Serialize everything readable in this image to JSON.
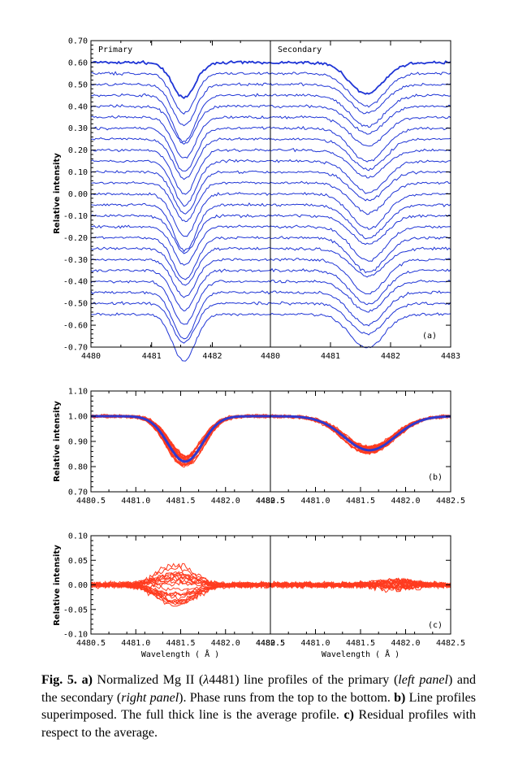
{
  "caption": {
    "label": "Fig. 5.",
    "a": "a)",
    "a_text1": " Normalized Mg II (",
    "lambda": "λ",
    "a_text2": "4481) line profiles of the primary (",
    "left_panel": "left panel",
    "a_text3": ") and the secondary (",
    "right_panel": "right panel",
    "a_text4": "). Phase runs from the top to the bottom. ",
    "b": "b)",
    "b_text": " Line profiles superimposed. The full thick line is the average profile. ",
    "c": "c)",
    "c_text": " Residual profiles with respect to the average."
  },
  "colors": {
    "profiles": "#1f35d6",
    "overlay": "#ff3b1f",
    "average": "#2f3ad0"
  },
  "chart_data": [
    {
      "type": "line",
      "panel_letter": "(a)",
      "ylabel": "Relative intensity",
      "ylim": [
        -0.7,
        0.7
      ],
      "yticks": [
        "0.70",
        "0.60",
        "0.50",
        "0.40",
        "0.30",
        "0.20",
        "0.10",
        "0.00",
        "-0.10",
        "-0.20",
        "-0.30",
        "-0.40",
        "-0.50",
        "-0.60",
        "-0.70"
      ],
      "subpanels": [
        {
          "name": "Primary",
          "xlim": [
            4480,
            4483
          ],
          "xticks": [
            "4480",
            "4481",
            "4482"
          ],
          "line_center": 4481.55,
          "line_depth": 0.19,
          "line_width": 0.27
        },
        {
          "name": "Secondary",
          "xlim": [
            4480,
            4483
          ],
          "xticks": [
            "4480",
            "4481",
            "4482",
            "4483"
          ],
          "line_center": 4481.6,
          "line_depth": 0.14,
          "line_width": 0.4
        }
      ],
      "continuum_levels": [
        0.6,
        0.55,
        0.5,
        0.45,
        0.4,
        0.35,
        0.3,
        0.25,
        0.2,
        0.15,
        0.1,
        0.05,
        0.0,
        -0.05,
        -0.1,
        -0.15,
        -0.2,
        -0.25,
        -0.3,
        -0.35,
        -0.4,
        -0.45,
        -0.5,
        -0.55
      ]
    },
    {
      "type": "line",
      "panel_letter": "(b)",
      "ylabel": "Relative intensity",
      "ylim": [
        0.7,
        1.1
      ],
      "yticks": [
        "1.10",
        "1.00",
        "0.90",
        "0.80",
        "0.70"
      ],
      "xlim": [
        4480.5,
        4482.5
      ],
      "xticks": [
        "4480.5",
        "4481.0",
        "4481.5",
        "4482.0",
        "4482.5"
      ],
      "subpanels": [
        {
          "name": "left",
          "average_min": 0.82,
          "center": 4481.55,
          "width": 0.27
        },
        {
          "name": "right",
          "average_min": 0.865,
          "center": 4481.6,
          "width": 0.4
        }
      ]
    },
    {
      "type": "line",
      "panel_letter": "(c)",
      "ylabel": "Relative intensity",
      "xlabel": "Wavelength ( Å )",
      "ylim": [
        -0.1,
        0.1
      ],
      "yticks": [
        "0.10",
        "0.05",
        "0.00",
        "-0.05",
        "-0.10"
      ],
      "xlim": [
        4480.5,
        4482.5
      ],
      "xticks": [
        "4480.5",
        "4481.0",
        "4481.5",
        "4482.0",
        "4482.5"
      ]
    }
  ]
}
